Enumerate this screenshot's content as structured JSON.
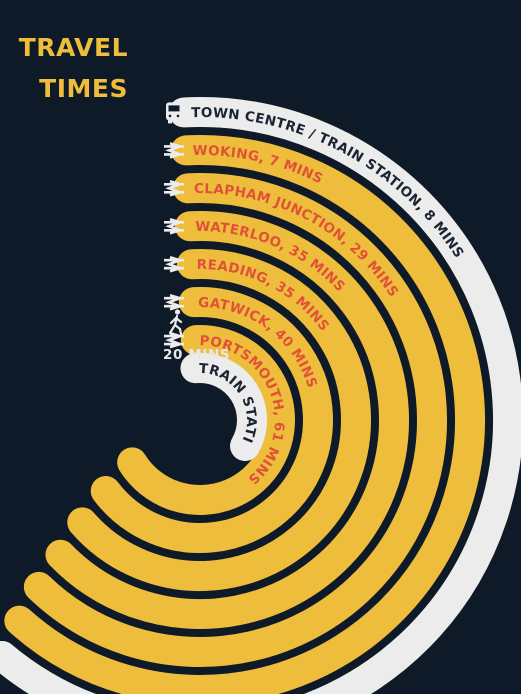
{
  "title": {
    "line1": "TRAVEL",
    "line2": "TIMES"
  },
  "walk": {
    "duration": "20 MINS",
    "icon": "walking-person-icon"
  },
  "colors": {
    "background": "#0f1a28",
    "ring": "#efbd3c",
    "ring_text": "#e0513a",
    "bus_band": "#ececec",
    "dark_text": "#1b2433",
    "icon": "#ececec"
  },
  "routes": [
    {
      "mode": "bus",
      "icon": "bus-icon",
      "label": "TOWN CENTRE / TRAIN STATION, 8 MINS"
    },
    {
      "mode": "rail",
      "icon": "national-rail-icon",
      "label": "WOKING, 7 MINS"
    },
    {
      "mode": "rail",
      "icon": "national-rail-icon",
      "label": "CLAPHAM JUNCTION, 29 MINS"
    },
    {
      "mode": "rail",
      "icon": "national-rail-icon",
      "label": "WATERLOO, 35 MINS"
    },
    {
      "mode": "rail",
      "icon": "national-rail-icon",
      "label": "READING, 35 MINS"
    },
    {
      "mode": "rail",
      "icon": "national-rail-icon",
      "label": "GATWICK, 40 MINS"
    },
    {
      "mode": "rail",
      "icon": "national-rail-icon",
      "label": "PORTSMOUTH, 61 MINS"
    },
    {
      "mode": "walk",
      "icon": "walking-person-icon",
      "label": "TRAIN STATION,"
    }
  ]
}
